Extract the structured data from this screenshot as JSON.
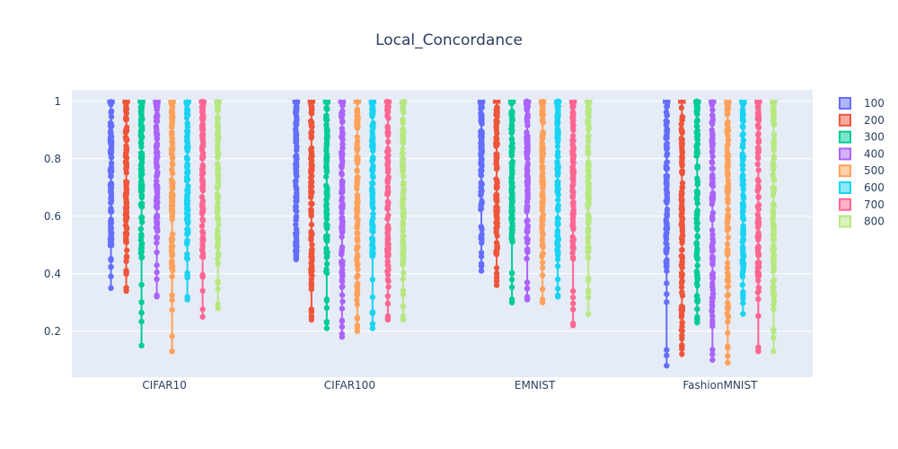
{
  "chart_data": {
    "type": "box",
    "title": "Local_Concordance",
    "xlabel": "",
    "ylabel": "",
    "categories": [
      "CIFAR10",
      "CIFAR100",
      "EMNIST",
      "FashionMNIST"
    ],
    "y_ticks": [
      0.2,
      0.4,
      0.6,
      0.8,
      1
    ],
    "y_tick_labels": [
      "0.2",
      "0.4",
      "0.6",
      "0.8",
      "1"
    ],
    "ylim": [
      0.04,
      1.04
    ],
    "grid": true,
    "legend_position": "right",
    "series": [
      {
        "name": "100",
        "color": "#636efa",
        "min": [
          0.35,
          0.45,
          0.41,
          0.08
        ],
        "dense_low": [
          0.49,
          0.47,
          0.48,
          0.4
        ],
        "heavy_low": [
          0.58,
          0.62,
          0.74,
          0.55
        ]
      },
      {
        "name": "200",
        "color": "#ef553b",
        "min": [
          0.34,
          0.24,
          0.36,
          0.12
        ],
        "dense_low": [
          0.45,
          0.35,
          0.45,
          0.2
        ],
        "heavy_low": [
          0.6,
          0.5,
          0.6,
          0.42
        ]
      },
      {
        "name": "300",
        "color": "#00cc96",
        "min": [
          0.15,
          0.21,
          0.3,
          0.23
        ],
        "dense_low": [
          0.45,
          0.4,
          0.5,
          0.3
        ],
        "heavy_low": [
          0.65,
          0.55,
          0.62,
          0.5
        ]
      },
      {
        "name": "400",
        "color": "#ab63fa",
        "min": [
          0.32,
          0.18,
          0.31,
          0.1
        ],
        "dense_low": [
          0.5,
          0.3,
          0.45,
          0.25
        ],
        "heavy_low": [
          0.6,
          0.5,
          0.62,
          0.45
        ]
      },
      {
        "name": "500",
        "color": "#ffa15a",
        "min": [
          0.13,
          0.2,
          0.3,
          0.09
        ],
        "dense_low": [
          0.4,
          0.3,
          0.45,
          0.25
        ],
        "heavy_low": [
          0.6,
          0.5,
          0.62,
          0.45
        ]
      },
      {
        "name": "600",
        "color": "#19d3f3",
        "min": [
          0.31,
          0.21,
          0.32,
          0.26
        ],
        "dense_low": [
          0.45,
          0.45,
          0.45,
          0.35
        ],
        "heavy_low": [
          0.6,
          0.55,
          0.62,
          0.5
        ]
      },
      {
        "name": "700",
        "color": "#ff6692",
        "min": [
          0.25,
          0.24,
          0.22,
          0.13
        ],
        "dense_low": [
          0.45,
          0.35,
          0.45,
          0.3
        ],
        "heavy_low": [
          0.6,
          0.5,
          0.6,
          0.45
        ]
      },
      {
        "name": "800",
        "color": "#b6e880",
        "min": [
          0.28,
          0.24,
          0.26,
          0.13
        ],
        "dense_low": [
          0.45,
          0.4,
          0.42,
          0.3
        ],
        "heavy_low": [
          0.6,
          0.55,
          0.6,
          0.45
        ]
      }
    ]
  }
}
